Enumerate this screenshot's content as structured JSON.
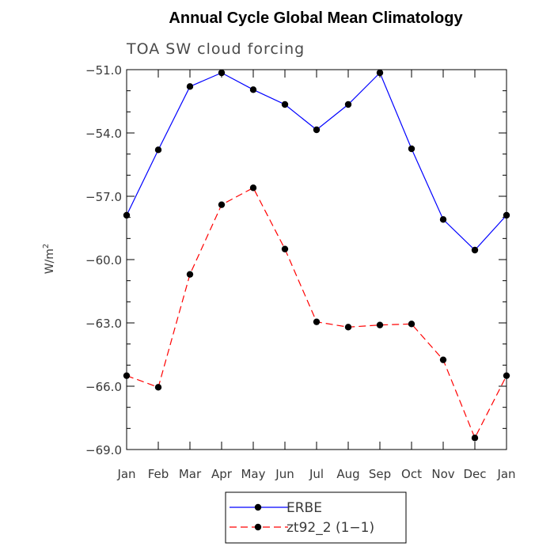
{
  "chart_data": {
    "type": "line",
    "title": "Annual Cycle Global Mean Climatology",
    "subtitle": "TOA SW cloud forcing",
    "ylabel": "W/m",
    "ylabel_superscript": "2",
    "ylim": [
      -69.0,
      -51.0
    ],
    "yticks": [
      -51.0,
      -54.0,
      -57.0,
      -60.0,
      -63.0,
      -66.0,
      -69.0
    ],
    "ytick_labels": [
      "−51.0",
      "−54.0",
      "−57.0",
      "−60.0",
      "−63.0",
      "−66.0",
      "−69.0"
    ],
    "categories": [
      "Jan",
      "Feb",
      "Mar",
      "Apr",
      "May",
      "Jun",
      "Jul",
      "Aug",
      "Sep",
      "Oct",
      "Nov",
      "Dec",
      "Jan"
    ],
    "series": [
      {
        "name": "ERBE",
        "color": "#0000ff",
        "dash": "solid",
        "values": [
          -57.9,
          -54.8,
          -51.8,
          -51.15,
          -51.95,
          -52.65,
          -53.85,
          -52.65,
          -51.15,
          -54.75,
          -58.1,
          -59.55,
          -57.9
        ]
      },
      {
        "name": "zt92_2 (1−1)",
        "color": "#ff0000",
        "dash": "dashed",
        "values": [
          -65.5,
          -66.05,
          -60.7,
          -57.4,
          -56.6,
          -59.5,
          -62.95,
          -63.2,
          -63.1,
          -63.05,
          -64.75,
          -68.45,
          -65.5
        ]
      }
    ],
    "grid": false,
    "legend_position": "bottom-center"
  }
}
